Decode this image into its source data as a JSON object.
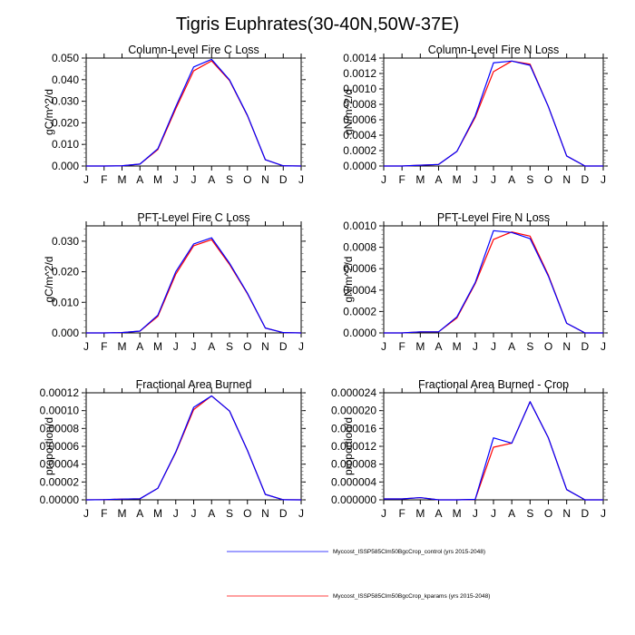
{
  "figure": {
    "title": "Tigris Euphrates(30-40N,50W-37E)"
  },
  "legend": {
    "placement": "bottom-center",
    "entries": [
      {
        "label": "Myccost_ISSP585Clm50BgcCrop_control (yrs 2015-2048)",
        "color": "#0000ff"
      },
      {
        "label": "Myccost_ISSP585Clm50BgcCrop_kparams (yrs 2015-2048)",
        "color": "#ff0000"
      }
    ]
  },
  "chart_data": [
    {
      "type": "line",
      "title": "Column-Level Fire C Loss",
      "xlabel": "",
      "ylabel": "gC/m^2/d",
      "x_ticks": [
        "J",
        "F",
        "M",
        "A",
        "M",
        "J",
        "J",
        "A",
        "S",
        "O",
        "N",
        "D",
        "J"
      ],
      "ylim": [
        0,
        0.05
      ],
      "y_ticks": [
        0,
        0.01,
        0.02,
        0.03,
        0.04,
        0.05
      ],
      "y_tick_labels": [
        "0.000",
        "0.010",
        "0.020",
        "0.030",
        "0.040",
        "0.050"
      ],
      "grid": false,
      "series": [
        {
          "name": "Myccost_ISSP585Clm50BgcCrop_control (yrs 2015-2048)",
          "color": "#0000ff",
          "values": [
            0.0,
            0.0,
            0.0001,
            0.0009,
            0.008,
            0.0275,
            0.0459,
            0.0494,
            0.0399,
            0.0235,
            0.0029,
            0.0001,
            0.0
          ]
        },
        {
          "name": "Myccost_ISSP585Clm50BgcCrop_kparams (yrs 2015-2048)",
          "color": "#ff0000",
          "values": [
            0.0,
            0.0,
            0.0001,
            0.0009,
            0.0076,
            0.0265,
            0.0441,
            0.0487,
            0.0396,
            0.0233,
            0.0029,
            0.0001,
            0.0
          ]
        }
      ]
    },
    {
      "type": "line",
      "title": "Column-Level Fire N Loss",
      "xlabel": "",
      "ylabel": "gN/m^2/d",
      "x_ticks": [
        "J",
        "F",
        "M",
        "A",
        "M",
        "J",
        "J",
        "A",
        "S",
        "O",
        "N",
        "D",
        "J"
      ],
      "ylim": [
        0,
        0.0014
      ],
      "y_ticks": [
        0,
        0.0002,
        0.0004,
        0.0006,
        0.0008,
        0.001,
        0.0012,
        0.0014
      ],
      "y_tick_labels": [
        "0.0000",
        "0.0002",
        "0.0004",
        "0.0006",
        "0.0008",
        "0.0010",
        "0.0012",
        "0.0014"
      ],
      "grid": false,
      "series": [
        {
          "name": "Myccost_ISSP585Clm50BgcCrop_control (yrs 2015-2048)",
          "color": "#0000ff",
          "values": [
            0.0,
            0.0,
            1e-05,
            2e-05,
            0.00019,
            0.00065,
            0.001338,
            0.001361,
            0.001306,
            0.00077,
            0.00013,
            0.0,
            0.0
          ]
        },
        {
          "name": "Myccost_ISSP585Clm50BgcCrop_kparams (yrs 2015-2048)",
          "color": "#ff0000",
          "values": [
            0.0,
            0.0,
            1e-05,
            2e-05,
            0.00019,
            0.00063,
            0.001224,
            0.001361,
            0.001321,
            0.00077,
            0.00013,
            0.0,
            0.0
          ]
        }
      ]
    },
    {
      "type": "line",
      "title": "PFT-Level Fire C Loss",
      "xlabel": "",
      "ylabel": "gC/m^2/d",
      "x_ticks": [
        "J",
        "F",
        "M",
        "A",
        "M",
        "J",
        "J",
        "A",
        "S",
        "O",
        "N",
        "D",
        "J"
      ],
      "ylim": [
        0,
        0.035
      ],
      "y_ticks": [
        0,
        0.01,
        0.02,
        0.03
      ],
      "y_tick_labels": [
        "0.000",
        "0.010",
        "0.020",
        "0.030"
      ],
      "grid": false,
      "series": [
        {
          "name": "Myccost_ISSP585Clm50BgcCrop_control (yrs 2015-2048)",
          "color": "#0000ff",
          "values": [
            0.0,
            0.0,
            0.0001,
            0.0006,
            0.0058,
            0.02,
            0.0291,
            0.0311,
            0.0228,
            0.013,
            0.0016,
            0.0001,
            0.0
          ]
        },
        {
          "name": "Myccost_ISSP585Clm50BgcCrop_kparams (yrs 2015-2048)",
          "color": "#ff0000",
          "values": [
            0.0,
            0.0,
            0.0001,
            0.0006,
            0.0054,
            0.0192,
            0.0285,
            0.0305,
            0.0224,
            0.0128,
            0.0016,
            0.0001,
            0.0
          ]
        }
      ]
    },
    {
      "type": "line",
      "title": "PFT-Level Fire N Loss",
      "xlabel": "",
      "ylabel": "gN/m^2/d",
      "x_ticks": [
        "J",
        "F",
        "M",
        "A",
        "M",
        "J",
        "J",
        "A",
        "S",
        "O",
        "N",
        "D",
        "J"
      ],
      "ylim": [
        0,
        0.001
      ],
      "y_ticks": [
        0,
        0.0002,
        0.0004,
        0.0006,
        0.0008,
        0.001
      ],
      "y_tick_labels": [
        "0.0000",
        "0.0002",
        "0.0004",
        "0.0006",
        "0.0008",
        "0.0010"
      ],
      "grid": false,
      "series": [
        {
          "name": "Myccost_ISSP585Clm50BgcCrop_control (yrs 2015-2048)",
          "color": "#0000ff",
          "values": [
            0.0,
            0.0,
            1e-05,
            1e-05,
            0.00015,
            0.00047,
            0.000955,
            0.000938,
            0.000881,
            0.00053,
            9e-05,
            0.0,
            0.0
          ]
        },
        {
          "name": "Myccost_ISSP585Clm50BgcCrop_kparams (yrs 2015-2048)",
          "color": "#ff0000",
          "values": [
            0.0,
            0.0,
            1e-05,
            1e-05,
            0.00014,
            0.00046,
            0.000873,
            0.000943,
            0.000904,
            0.00054,
            9e-05,
            0.0,
            0.0
          ]
        }
      ]
    },
    {
      "type": "line",
      "title": "Fractional Area Burned",
      "xlabel": "",
      "ylabel": "proportion/d",
      "x_ticks": [
        "J",
        "F",
        "M",
        "A",
        "M",
        "J",
        "J",
        "A",
        "S",
        "O",
        "N",
        "D",
        "J"
      ],
      "ylim": [
        0,
        0.00012
      ],
      "y_ticks": [
        0,
        2e-05,
        4e-05,
        6e-05,
        8e-05,
        0.0001,
        0.00012
      ],
      "y_tick_labels": [
        "0.00000",
        "0.00002",
        "0.00004",
        "0.00006",
        "0.00008",
        "0.00010",
        "0.00012"
      ],
      "grid": false,
      "series": [
        {
          "name": "Myccost_ISSP585Clm50BgcCrop_control (yrs 2015-2048)",
          "color": "#0000ff",
          "values": [
            0.0,
            2e-07,
            8e-07,
            1.2e-06,
            1.3e-05,
            5.37e-05,
            0.0001037,
            0.0001165,
            9.96e-05,
            5.54e-05,
            6.1e-06,
            1e-07,
            0.0
          ]
        },
        {
          "name": "Myccost_ISSP585Clm50BgcCrop_kparams (yrs 2015-2048)",
          "color": "#ff0000",
          "values": [
            0.0,
            2e-07,
            8e-07,
            1.2e-06,
            1.3e-05,
            5.3e-05,
            0.0001012,
            0.0001165,
            9.96e-05,
            5.54e-05,
            6.1e-06,
            1e-07,
            0.0
          ]
        }
      ]
    },
    {
      "type": "line",
      "title": "Fractional Area Burned - Crop",
      "xlabel": "",
      "ylabel": "proportion/d",
      "x_ticks": [
        "J",
        "F",
        "M",
        "A",
        "M",
        "J",
        "J",
        "A",
        "S",
        "O",
        "N",
        "D",
        "J"
      ],
      "ylim": [
        0,
        2.4e-05
      ],
      "y_ticks": [
        0,
        4e-06,
        8e-06,
        1.2e-05,
        1.6e-05,
        2e-05,
        2.4e-05
      ],
      "y_tick_labels": [
        "0.000000",
        "0.000004",
        "0.000008",
        "0.000012",
        "0.000016",
        "0.000020",
        "0.000024"
      ],
      "grid": false,
      "series": [
        {
          "name": "Myccost_ISSP585Clm50BgcCrop_control (yrs 2015-2048)",
          "color": "#0000ff",
          "values": [
            2e-07,
            2e-07,
            5e-07,
            0.0,
            0.0,
            1e-07,
            1.39e-05,
            1.27e-05,
            2.2e-05,
            1.39e-05,
            2.3e-06,
            0.0,
            0.0
          ]
        },
        {
          "name": "Myccost_ISSP585Clm50BgcCrop_kparams (yrs 2015-2048)",
          "color": "#ff0000",
          "values": [
            2e-07,
            2e-07,
            5e-07,
            0.0,
            0.0,
            1e-07,
            1.18e-05,
            1.27e-05,
            2.2e-05,
            1.39e-05,
            2.3e-06,
            0.0,
            0.0
          ]
        }
      ]
    }
  ]
}
